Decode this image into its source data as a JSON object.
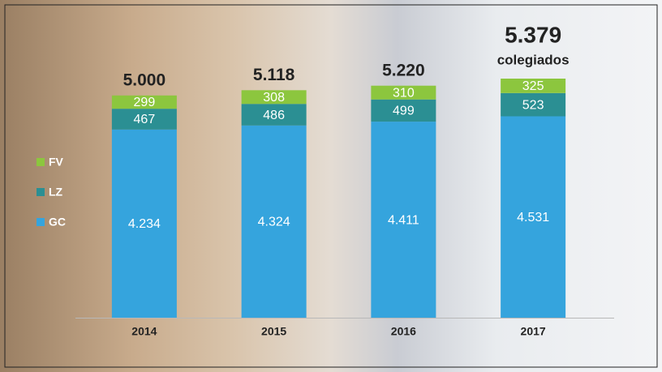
{
  "chart_data": {
    "type": "stacked-bar",
    "categories": [
      "2014",
      "2015",
      "2016",
      "2017"
    ],
    "series": [
      {
        "name": "GC",
        "color": "#35a4dd",
        "values": [
          4234,
          4324,
          4411,
          4531
        ],
        "value_labels": [
          "4.234",
          "4.324",
          "4.411",
          "4.531"
        ]
      },
      {
        "name": "LZ",
        "color": "#2b8f93",
        "values": [
          467,
          486,
          499,
          523
        ]
      },
      {
        "name": "FV",
        "color": "#8cc63e",
        "values": [
          299,
          308,
          310,
          325
        ]
      }
    ],
    "totals": {
      "values": [
        5000,
        5118,
        5220,
        5379
      ],
      "value_labels": [
        "5.000",
        "5.118",
        "5.220",
        "5.379"
      ]
    },
    "annotation": "colegiados"
  }
}
